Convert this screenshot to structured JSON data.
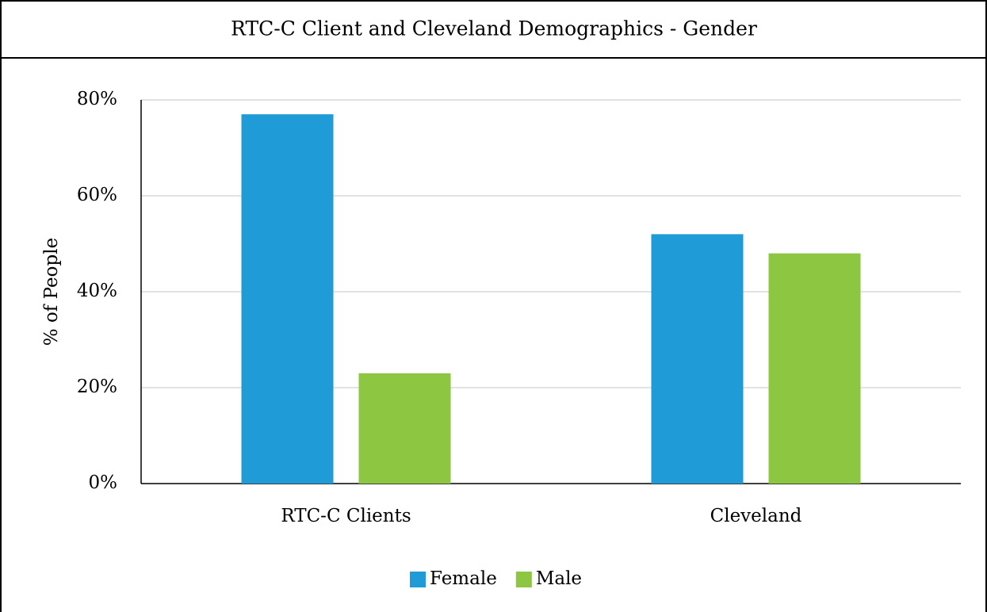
{
  "chart_data": {
    "type": "bar",
    "title": "RTC-C Client and Cleveland Demographics - Gender",
    "y_label": "% of People",
    "categories": [
      "RTC-C Clients",
      "Cleveland"
    ],
    "series": [
      {
        "name": "Female",
        "color": "#1f9bd7",
        "values": [
          77,
          52
        ]
      },
      {
        "name": "Male",
        "color": "#8dc641",
        "values": [
          23,
          48
        ]
      }
    ],
    "ylim": [
      0,
      80
    ],
    "yticks": [
      {
        "value": 0,
        "label": "0%"
      },
      {
        "value": 20,
        "label": "20%"
      },
      {
        "value": 40,
        "label": "40%"
      },
      {
        "value": 60,
        "label": "60%"
      },
      {
        "value": 80,
        "label": "80%"
      }
    ],
    "grid": true,
    "legend": "bottom"
  }
}
